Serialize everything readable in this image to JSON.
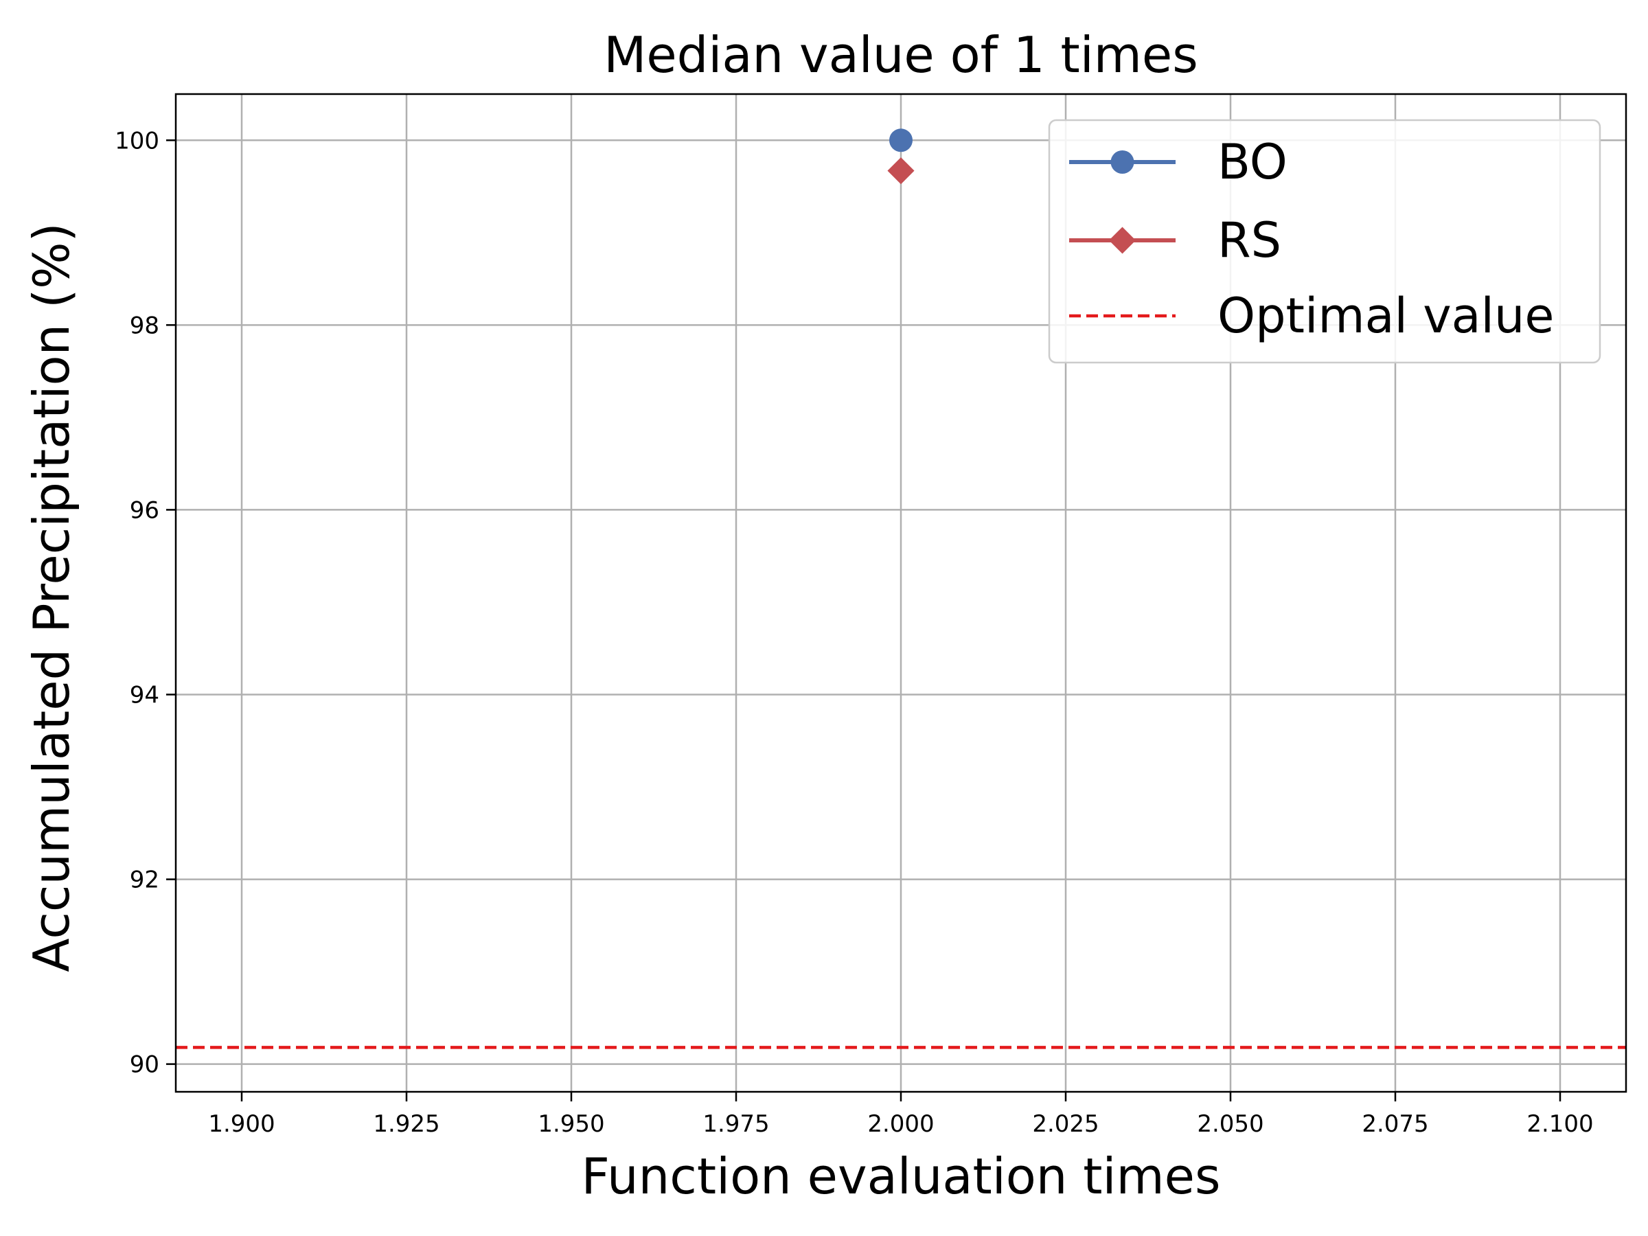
{
  "chart_data": {
    "type": "line",
    "title": "Median value of 1 times",
    "xlabel": "Function evaluation times",
    "ylabel": "Accumulated Precipitation (%)",
    "xlim": [
      1.89,
      2.11
    ],
    "ylim": [
      89.7,
      100.5
    ],
    "xticks": [
      "1.900",
      "1.925",
      "1.950",
      "1.975",
      "2.000",
      "2.025",
      "2.050",
      "2.075",
      "2.100"
    ],
    "xtick_values": [
      1.9,
      1.925,
      1.95,
      1.975,
      2.0,
      2.025,
      2.05,
      2.075,
      2.1
    ],
    "yticks": [
      "90",
      "92",
      "94",
      "96",
      "98",
      "100"
    ],
    "ytick_values": [
      90,
      92,
      94,
      96,
      98,
      100
    ],
    "grid": true,
    "legend_position": "top-right",
    "series": [
      {
        "name": "BO",
        "marker": "circle",
        "color": "#4c72b0",
        "x": [
          2.0
        ],
        "y": [
          100.0
        ]
      },
      {
        "name": "RS",
        "marker": "diamond",
        "color": "#c44e52",
        "x": [
          2.0
        ],
        "y": [
          99.67
        ]
      }
    ],
    "reference_lines": [
      {
        "name": "Optimal value",
        "style": "dashed",
        "color": "#e41a1c",
        "y": 90.18
      }
    ]
  }
}
